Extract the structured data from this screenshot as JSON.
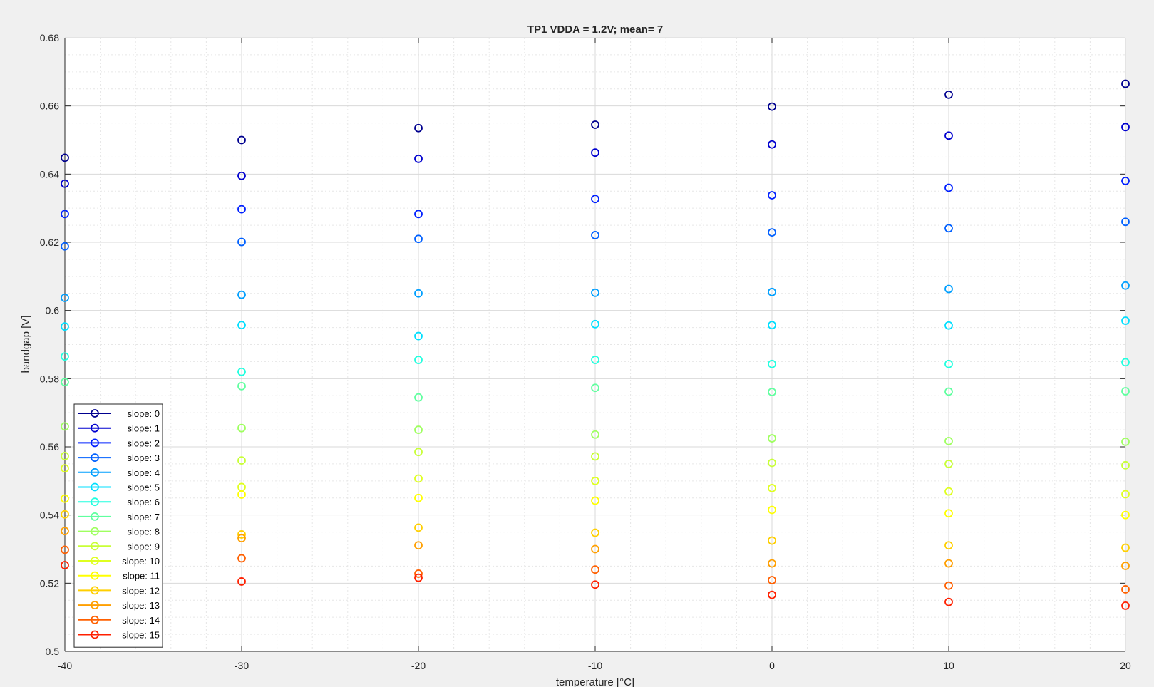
{
  "chart_data": {
    "type": "scatter",
    "title": "TP1 VDDA = 1.2V; mean= 7",
    "xlabel": "temperature [°C]",
    "ylabel": "bandgap [V]",
    "xlim": [
      -40,
      20
    ],
    "ylim": [
      0.5,
      0.68
    ],
    "x_ticks": [
      -40,
      -30,
      -20,
      -10,
      0,
      10,
      20
    ],
    "y_ticks": [
      0.5,
      0.52,
      0.54,
      0.56,
      0.58,
      0.6,
      0.62,
      0.64,
      0.66,
      0.68
    ],
    "grid": true,
    "minor_grid": true,
    "legend_position": "bottom-left",
    "x": [
      -40,
      -30,
      -20,
      -10,
      0,
      10,
      20
    ],
    "series": [
      {
        "name": "slope: 0",
        "color": "#00008f",
        "values": [
          0.6448,
          0.65,
          0.6535,
          0.6545,
          0.6598,
          0.6633,
          0.6665
        ]
      },
      {
        "name": "slope: 1",
        "color": "#0000cf",
        "values": [
          0.6372,
          0.6395,
          0.6445,
          0.6463,
          0.6487,
          0.6513,
          0.6538
        ]
      },
      {
        "name": "slope: 2",
        "color": "#0020ff",
        "values": [
          0.6283,
          0.6297,
          0.6283,
          0.6327,
          0.6338,
          0.636,
          0.638
        ]
      },
      {
        "name": "slope: 3",
        "color": "#0060ff",
        "values": [
          0.6188,
          0.6201,
          0.621,
          0.6221,
          0.6229,
          0.6241,
          0.626
        ]
      },
      {
        "name": "slope: 4",
        "color": "#009fff",
        "values": [
          0.6037,
          0.6046,
          0.605,
          0.6052,
          0.6054,
          0.6063,
          0.6073
        ]
      },
      {
        "name": "slope: 5",
        "color": "#00dfff",
        "values": [
          0.5953,
          0.5957,
          0.5925,
          0.596,
          0.5957,
          0.5956,
          0.597
        ]
      },
      {
        "name": "slope: 6",
        "color": "#20ffdf",
        "values": [
          0.5865,
          0.582,
          0.5855,
          0.5855,
          0.5843,
          0.5843,
          0.5848
        ]
      },
      {
        "name": "slope: 7",
        "color": "#60ff9f",
        "values": [
          0.579,
          0.5778,
          0.5745,
          0.5773,
          0.5761,
          0.5762,
          0.5763
        ]
      },
      {
        "name": "slope: 8",
        "color": "#9fff60",
        "values": [
          0.566,
          0.5655,
          0.565,
          0.5636,
          0.5625,
          0.5617,
          0.5615
        ]
      },
      {
        "name": "slope: 9",
        "color": "#c8ff36",
        "values": [
          0.5573,
          0.556,
          0.5585,
          0.5572,
          0.5553,
          0.555,
          0.5546
        ]
      },
      {
        "name": "slope: 10",
        "color": "#dfff20",
        "values": [
          0.5537,
          0.5482,
          0.5507,
          0.55,
          0.5479,
          0.5469,
          0.5461
        ]
      },
      {
        "name": "slope: 11",
        "color": "#ffff00",
        "values": [
          0.5448,
          0.546,
          0.545,
          0.5442,
          0.5415,
          0.5405,
          0.54
        ]
      },
      {
        "name": "slope: 12",
        "color": "#ffcf00",
        "values": [
          0.5402,
          0.5343,
          0.5363,
          0.5348,
          0.5325,
          0.5311,
          0.5304
        ]
      },
      {
        "name": "slope: 13",
        "color": "#ff9f00",
        "values": [
          0.5353,
          0.5332,
          0.5311,
          0.53,
          0.5258,
          0.5258,
          0.5251
        ]
      },
      {
        "name": "slope: 14",
        "color": "#ff6000",
        "values": [
          0.5298,
          0.5273,
          0.5228,
          0.524,
          0.5209,
          0.5193,
          0.5182
        ]
      },
      {
        "name": "slope: 15",
        "color": "#ff2000",
        "values": [
          0.5253,
          0.5205,
          0.5216,
          0.5196,
          0.5166,
          0.5145,
          0.5134
        ]
      }
    ]
  }
}
